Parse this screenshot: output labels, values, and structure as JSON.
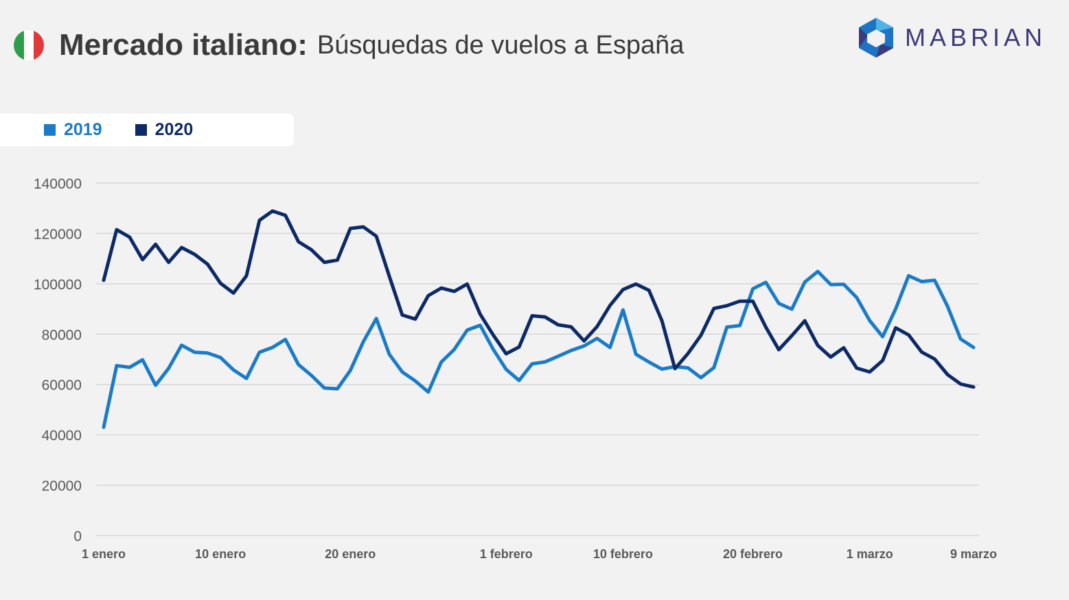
{
  "header": {
    "title_bold": "Mercado italiano:",
    "title_light": "Búsquedas de vuelos a España",
    "flag_icon": "italy-flag-icon",
    "flag_colors": [
      "#2e9e4b",
      "#ffffff",
      "#e23a3a"
    ]
  },
  "logo": {
    "text": "MABRIAN",
    "icon": "mabrian-hexagon-icon",
    "colors": [
      "#1d73c5",
      "#3c3a7a",
      "#4fb3e8"
    ]
  },
  "legend": [
    {
      "label": "2019",
      "color": "#1a7bc8"
    },
    {
      "label": "2020",
      "color": "#0c2a67"
    }
  ],
  "chart_data": {
    "type": "line",
    "title": "Búsquedas de vuelos a España",
    "ylim": [
      0,
      140000
    ],
    "y_ticks": [
      0,
      20000,
      40000,
      60000,
      80000,
      100000,
      120000,
      140000
    ],
    "x_tick_labels": [
      {
        "label": "1 enero",
        "index": 0
      },
      {
        "label": "10 enero",
        "index": 9
      },
      {
        "label": "20 enero",
        "index": 19
      },
      {
        "label": "1 febrero",
        "index": 31
      },
      {
        "label": "10 febrero",
        "index": 40
      },
      {
        "label": "20 febrero",
        "index": 50
      },
      {
        "label": "1 marzo",
        "index": 59
      },
      {
        "label": "9 marzo",
        "index": 67
      }
    ],
    "grid": true,
    "legend_position": "top-left",
    "series": [
      {
        "name": "2019",
        "color": "#1a7bc8",
        "values": [
          43000,
          67500,
          66800,
          69800,
          59700,
          66400,
          75600,
          72800,
          72500,
          70700,
          65800,
          62400,
          72800,
          74700,
          77900,
          67900,
          63600,
          58600,
          58300,
          65600,
          77000,
          86200,
          72000,
          65000,
          61400,
          57000,
          68900,
          73900,
          81600,
          83500,
          74000,
          66000,
          61600,
          68200,
          69000,
          71200,
          73500,
          75300,
          78300,
          74700,
          89600,
          72000,
          68900,
          66100,
          67100,
          66600,
          62700,
          66700,
          82800,
          83400,
          98000,
          100600,
          92200,
          89900,
          100700,
          104900,
          99700,
          99800,
          94500,
          85400,
          79000,
          90000,
          103200,
          100900,
          101400,
          91000,
          78100,
          74700
        ]
      },
      {
        "name": "2020",
        "color": "#0c2a67",
        "values": [
          101400,
          121500,
          118500,
          109600,
          115700,
          108500,
          114400,
          111700,
          107800,
          100200,
          96300,
          103200,
          125200,
          128900,
          127200,
          116700,
          113500,
          108500,
          109400,
          122000,
          122600,
          118900,
          103000,
          87600,
          86000,
          95300,
          98300,
          97000,
          99900,
          87900,
          79700,
          72200,
          74900,
          87300,
          86800,
          83700,
          82900,
          77300,
          83000,
          91400,
          97700,
          99900,
          97400,
          85300,
          66300,
          72300,
          79500,
          90200,
          91300,
          93100,
          93100,
          82800,
          73800,
          79400,
          85300,
          75500,
          70900,
          74600,
          66500,
          65000,
          69500,
          82500,
          79700,
          72900,
          70100,
          63900,
          60200,
          59000
        ]
      }
    ]
  }
}
